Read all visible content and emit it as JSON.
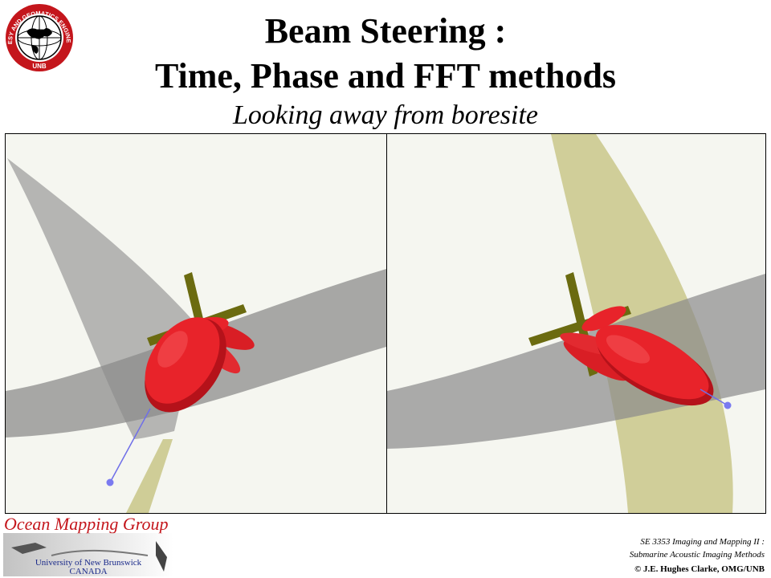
{
  "header": {
    "title_line1": "Beam Steering :",
    "title_line2": "Time, Phase and FFT methods",
    "subtitle": "Looking away from boresite"
  },
  "logo": {
    "ring_text": "GEODESY AND GEOMATICS ENGINEERING",
    "bottom_text": "UNB",
    "ring_color": "#c4161c"
  },
  "footer": {
    "group_name": "Ocean Mapping Group",
    "university_line1": "University of New Brunswick",
    "university_line2": "CANADA",
    "course_line1": "SE 3353 Imaging and Mapping II :",
    "course_line2": "Submarine Acoustic Imaging Methods",
    "copyright": "© J.E. Hughes Clarke, OMG/UNB"
  },
  "colors": {
    "beam_red": "#e8232a",
    "fan_gray": "#8f8f8f",
    "fan_olive": "#c9c78a",
    "array_olive": "#6b6b10",
    "point_blue": "#7a7af0"
  },
  "panels": [
    {
      "id": "time-delay-panel"
    },
    {
      "id": "fft-panel"
    }
  ]
}
